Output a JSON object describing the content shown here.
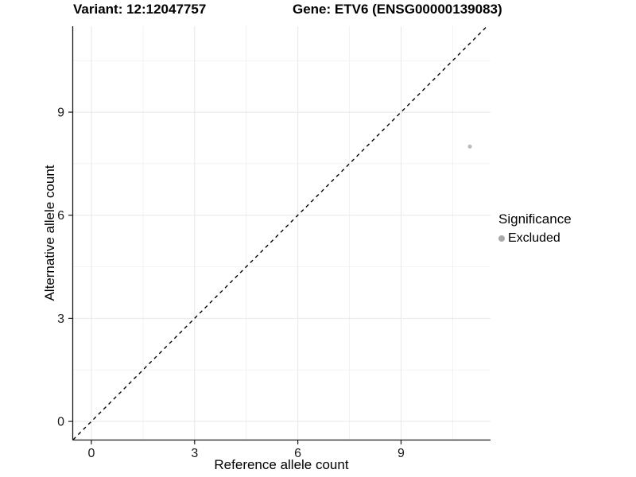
{
  "figure": {
    "title_left": "Variant: 12:12047757",
    "title_right": "Gene: ETV6 (ENSG00000139083)"
  },
  "chart_data": {
    "type": "scatter",
    "title_left": "Variant: 12:12047757",
    "title_right": "Gene: ETV6 (ENSG00000139083)",
    "xlabel": "Reference allele count",
    "ylabel": "Alternative allele count",
    "xlim": [
      -0.53,
      11.6
    ],
    "ylim": [
      -0.53,
      11.5
    ],
    "x_major_ticks": [
      0,
      3,
      6,
      9
    ],
    "y_major_ticks": [
      0,
      3,
      6,
      9
    ],
    "x_minor_ticks": [
      1.5,
      4.5,
      7.5,
      10.5
    ],
    "y_minor_ticks": [
      1.5,
      4.5,
      7.5,
      10.5
    ],
    "grid": true,
    "grid_major_color": "#e7e7e7",
    "grid_minor_color": "#f2f2f2",
    "axis_line_color": "#1a1a1a",
    "tick_label_color": "#1a1a1a",
    "identity_line": {
      "style": "dashed",
      "color": "#000000",
      "slope": 1,
      "intercept": 0
    },
    "points": [
      {
        "x": 11,
        "y": 8,
        "series": "Excluded",
        "color": "#bcbcbc",
        "radius": 2.6
      }
    ],
    "legend": {
      "title": "Significance",
      "position": "right",
      "items": [
        {
          "label": "Excluded",
          "color": "#a9a9a9"
        }
      ]
    }
  }
}
